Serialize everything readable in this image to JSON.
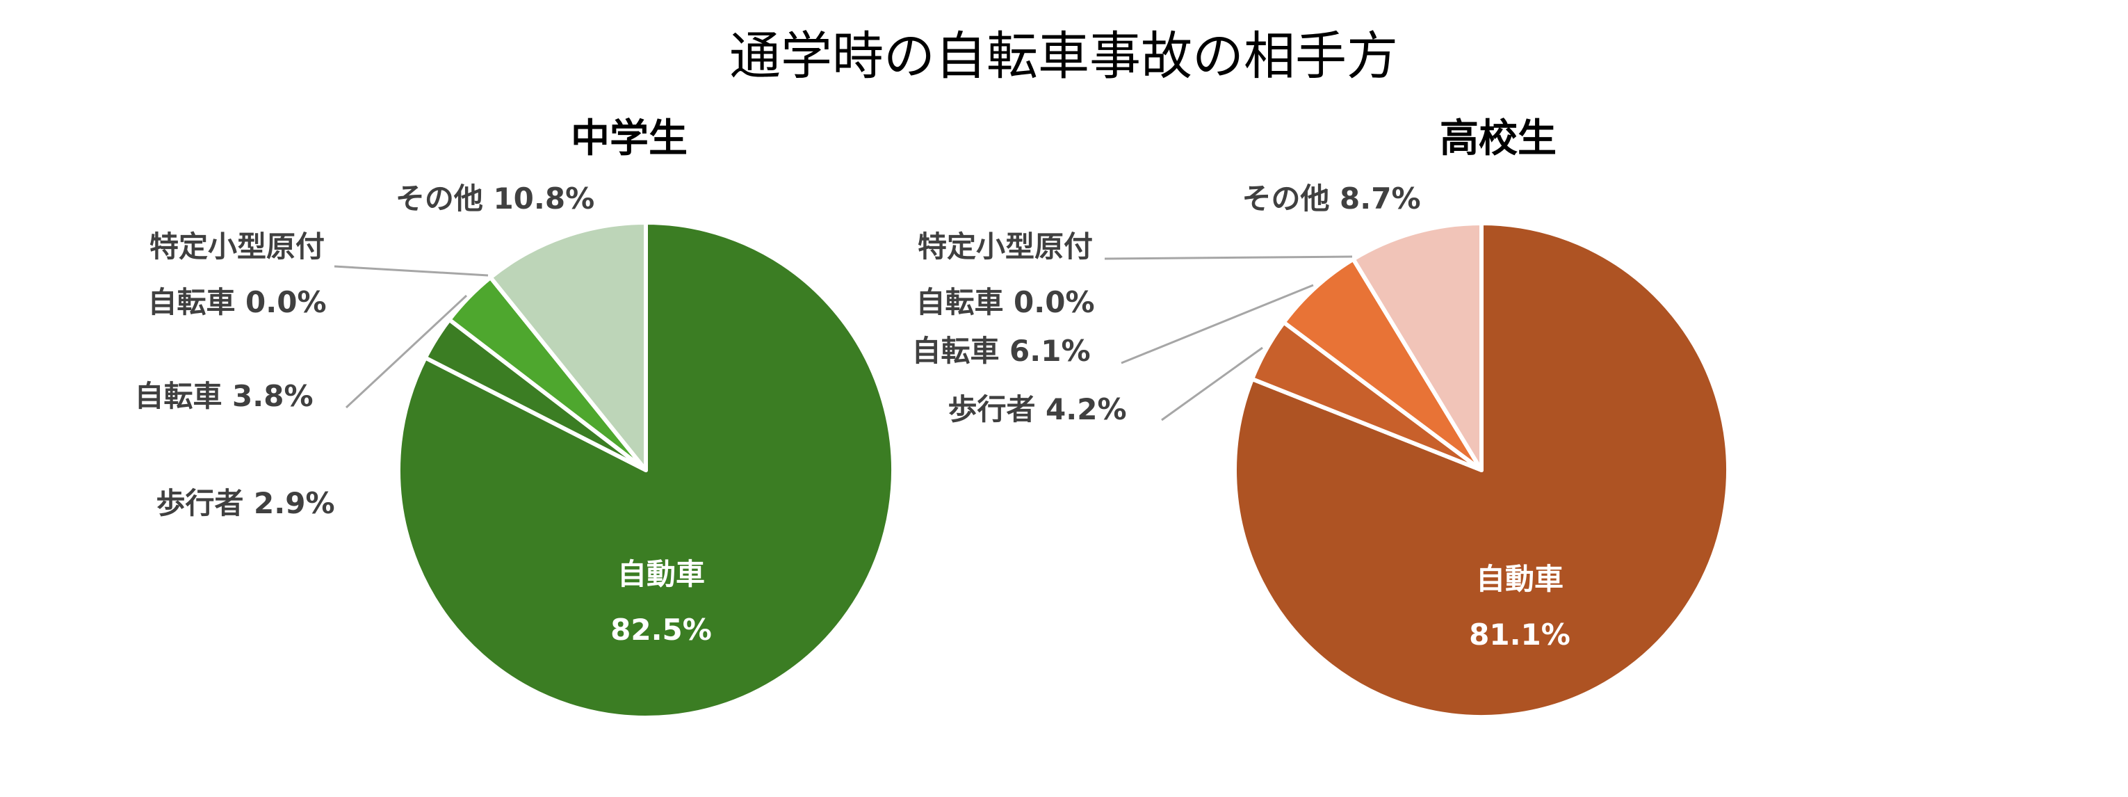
{
  "chart_data": {
    "type": "pie",
    "title": "通学時の自転車事故の相手方",
    "charts": [
      {
        "subtitle": "中学生",
        "categories": [
          "自動車",
          "歩行者",
          "自転車",
          "特定小型原付自転車",
          "その他"
        ],
        "values": [
          82.5,
          2.9,
          3.8,
          0.0,
          10.8
        ],
        "labels": [
          "82.5%",
          "2.9%",
          "3.8%",
          "0.0%",
          "10.8%"
        ],
        "label_lines": [
          [
            "自動車",
            "82.5%"
          ],
          [
            "歩行者 2.9%"
          ],
          [
            "自転車 3.8%"
          ],
          [
            "特定小型原付",
            "自転車 0.0%"
          ],
          [
            "その他 10.8%"
          ]
        ],
        "colors": [
          "#3B7D23",
          "#3B7D23",
          "#4EA72E",
          "#6FB04F",
          "#BDD5B8"
        ]
      },
      {
        "subtitle": "高校生",
        "categories": [
          "自動車",
          "歩行者",
          "自転車",
          "特定小型原付自転車",
          "その他"
        ],
        "values": [
          81.1,
          4.2,
          6.1,
          0.0,
          8.7
        ],
        "labels": [
          "81.1%",
          "4.2%",
          "6.1%",
          "0.0%",
          "8.7%"
        ],
        "label_lines": [
          [
            "自動車",
            "81.1%"
          ],
          [
            "歩行者 4.2%"
          ],
          [
            "自転車 6.1%"
          ],
          [
            "特定小型原付",
            "自転車 0.0%"
          ],
          [
            "その他 8.7%"
          ]
        ],
        "colors": [
          "#AE5323",
          "#C8602B",
          "#E87336",
          "#E98B5E",
          "#F1C4B8"
        ]
      }
    ],
    "direction": "clockwise from top",
    "legend": "none",
    "leader_line_color": "#A6A6A6"
  }
}
